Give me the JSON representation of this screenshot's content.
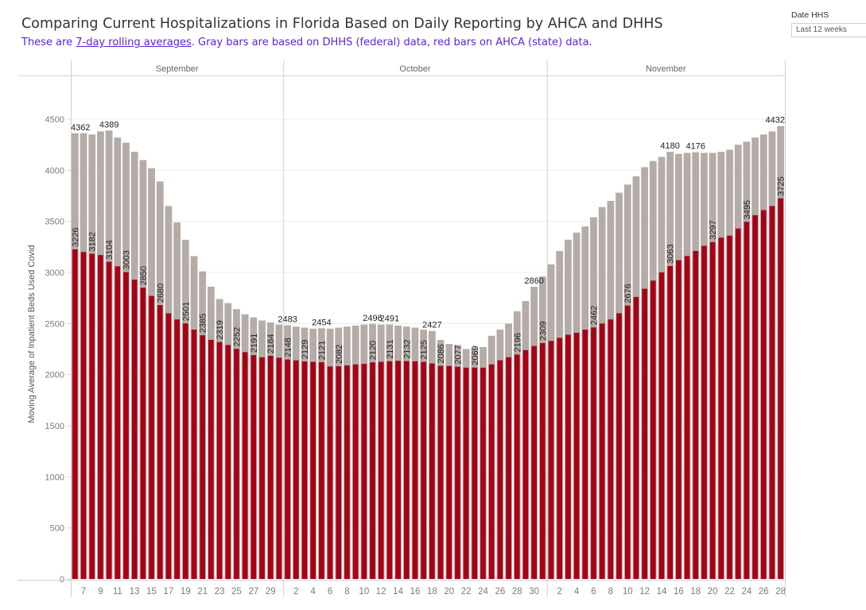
{
  "header": {
    "title": "Comparing Current Hospitalizations in Florida Based on Daily Reporting by AHCA and DHHS",
    "subtitle_prefix": "These are ",
    "subtitle_link": "7-day rolling averages",
    "subtitle_suffix": ". Gray bars are based on DHHS (federal) data, red bars on AHCA (state) data."
  },
  "filter": {
    "label": "Date HHS",
    "value": "Last 12 weeks"
  },
  "colors": {
    "dhhs": "#b5aca8",
    "ahca": "#a80015",
    "grid": "#ececec",
    "axis_text": "#7a7a7a",
    "subtitle": "#5a22e0"
  },
  "chart_data": {
    "type": "bar",
    "title": "Comparing Current Hospitalizations in Florida Based on Daily Reporting by AHCA and DHHS",
    "xlabel": "",
    "ylabel": "Moving Average of Inpatient Beds Used Covid",
    "ylim": [
      0,
      4750
    ],
    "yticks": [
      0,
      500,
      1000,
      1500,
      2000,
      2500,
      3000,
      3500,
      4000,
      4500
    ],
    "grid": true,
    "legend": "none (described in subtitle)",
    "months": [
      {
        "name": "September",
        "start_day": 6,
        "days": 25
      },
      {
        "name": "October",
        "start_day": 1,
        "days": 31
      },
      {
        "name": "November",
        "start_day": 1,
        "days": 28
      }
    ],
    "series": [
      {
        "name": "DHHS (federal)",
        "color": "#b5aca8",
        "values": [
          4362,
          4362,
          4350,
          4380,
          4389,
          4320,
          4270,
          4180,
          4100,
          4020,
          3890,
          3650,
          3490,
          3320,
          3160,
          3010,
          2860,
          2740,
          2700,
          2640,
          2590,
          2560,
          2530,
          2510,
          2490,
          2483,
          2470,
          2460,
          2450,
          2454,
          2450,
          2460,
          2470,
          2480,
          2490,
          2496,
          2490,
          2491,
          2480,
          2470,
          2460,
          2440,
          2427,
          2340,
          2300,
          2290,
          2250,
          2260,
          2270,
          2380,
          2440,
          2500,
          2620,
          2720,
          2860,
          2960,
          3080,
          3210,
          3320,
          3390,
          3450,
          3540,
          3640,
          3700,
          3780,
          3860,
          3940,
          4030,
          4090,
          4130,
          4180,
          4160,
          4170,
          4176,
          4170,
          4170,
          4180,
          4200,
          4250,
          4280,
          4320,
          4350,
          4380,
          4432
        ],
        "labels": {
          "0": "4362",
          "4": "4389",
          "25": "2483",
          "29": "2454",
          "35": "2496",
          "37": "2491",
          "42": "2427",
          "54": "2860",
          "70": "4180",
          "73": "4176",
          "83": "4432"
        }
      },
      {
        "name": "AHCA (state)",
        "color": "#a80015",
        "values": [
          3226,
          3200,
          3182,
          3170,
          3104,
          3060,
          3003,
          2930,
          2850,
          2770,
          2680,
          2600,
          2540,
          2501,
          2440,
          2385,
          2340,
          2319,
          2290,
          2252,
          2220,
          2191,
          2170,
          2184,
          2165,
          2148,
          2140,
          2129,
          2125,
          2121,
          2080,
          2082,
          2090,
          2100,
          2105,
          2120,
          2125,
          2131,
          2135,
          2132,
          2130,
          2125,
          2110,
          2086,
          2085,
          2077,
          2068,
          2069,
          2068,
          2100,
          2140,
          2170,
          2196,
          2240,
          2280,
          2309,
          2330,
          2360,
          2390,
          2410,
          2440,
          2462,
          2500,
          2540,
          2600,
          2676,
          2760,
          2840,
          2920,
          3000,
          3063,
          3120,
          3160,
          3210,
          3260,
          3297,
          3340,
          3360,
          3430,
          3495,
          3560,
          3610,
          3650,
          3725
        ],
        "labels": {
          "0": "3226",
          "2": "3182",
          "4": "3104",
          "6": "3003",
          "8": "2850",
          "10": "2680",
          "13": "2501",
          "15": "2385",
          "17": "2319",
          "19": "2252",
          "21": "2191",
          "23": "2184",
          "25": "2148",
          "27": "2129",
          "29": "2121",
          "31": "2082",
          "35": "2120",
          "37": "2131",
          "39": "2132",
          "41": "2125",
          "43": "2086",
          "45": "2077",
          "47": "2069",
          "52": "2196",
          "55": "2309",
          "61": "2462",
          "65": "2676",
          "70": "3063",
          "75": "3297",
          "79": "3495",
          "83": "3725"
        }
      }
    ],
    "x_tick_labels": {
      "September": [
        "7",
        "9",
        "11",
        "13",
        "15",
        "17",
        "19",
        "21",
        "23",
        "25",
        "27",
        "29"
      ],
      "October": [
        "2",
        "4",
        "6",
        "8",
        "10",
        "12",
        "14",
        "16",
        "18",
        "20",
        "22",
        "24",
        "26",
        "28",
        "30"
      ],
      "November": [
        "2",
        "4",
        "6",
        "8",
        "10",
        "12",
        "14",
        "16",
        "18",
        "20",
        "22",
        "24",
        "26",
        "28"
      ]
    }
  }
}
